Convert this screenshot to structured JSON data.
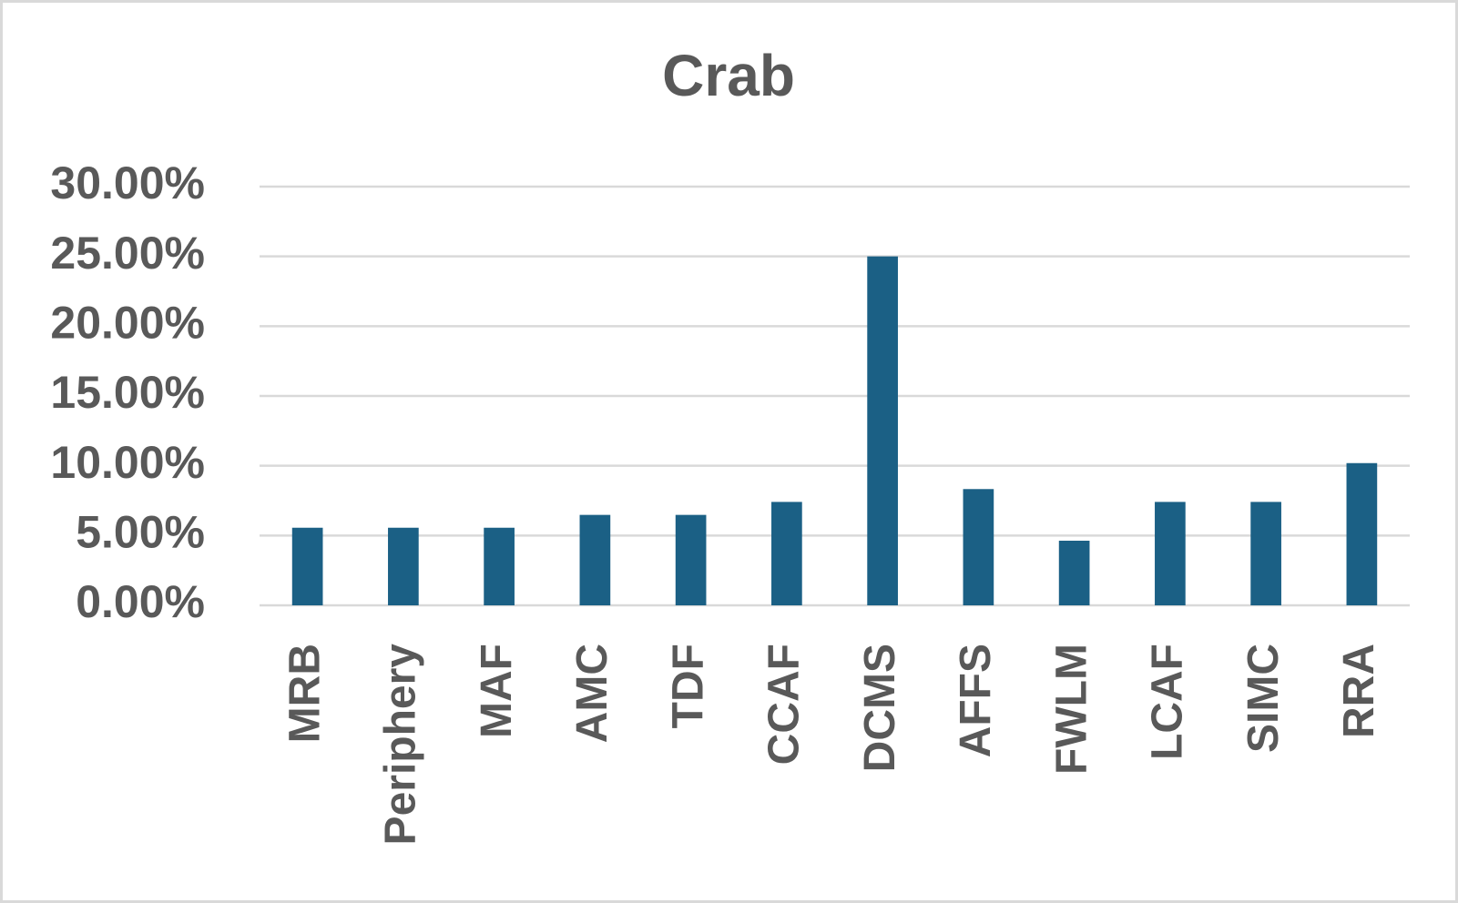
{
  "chart_data": {
    "type": "bar",
    "title": "Crab",
    "categories": [
      "MRB",
      "Periphery",
      "MAF",
      "AMC",
      "TDF",
      "CCAF",
      "DCMS",
      "AFFS",
      "FWLM",
      "LCAF",
      "SIMC",
      "RRA"
    ],
    "values": [
      5.56,
      5.56,
      5.56,
      6.48,
      6.48,
      7.41,
      25,
      8.33,
      4.63,
      7.41,
      7.41,
      10.19
    ],
    "color": "#1b6085",
    "ylim": [
      0,
      30
    ],
    "yticks": [
      {
        "value": 0,
        "label": "0.00%"
      },
      {
        "value": 5,
        "label": "5.00%"
      },
      {
        "value": 10,
        "label": "10.00%"
      },
      {
        "value": 15,
        "label": "15.00%"
      },
      {
        "value": 20,
        "label": "20.00%"
      },
      {
        "value": 25,
        "label": "25.00%"
      },
      {
        "value": 30,
        "label": "30.00%"
      }
    ],
    "grid": true
  }
}
